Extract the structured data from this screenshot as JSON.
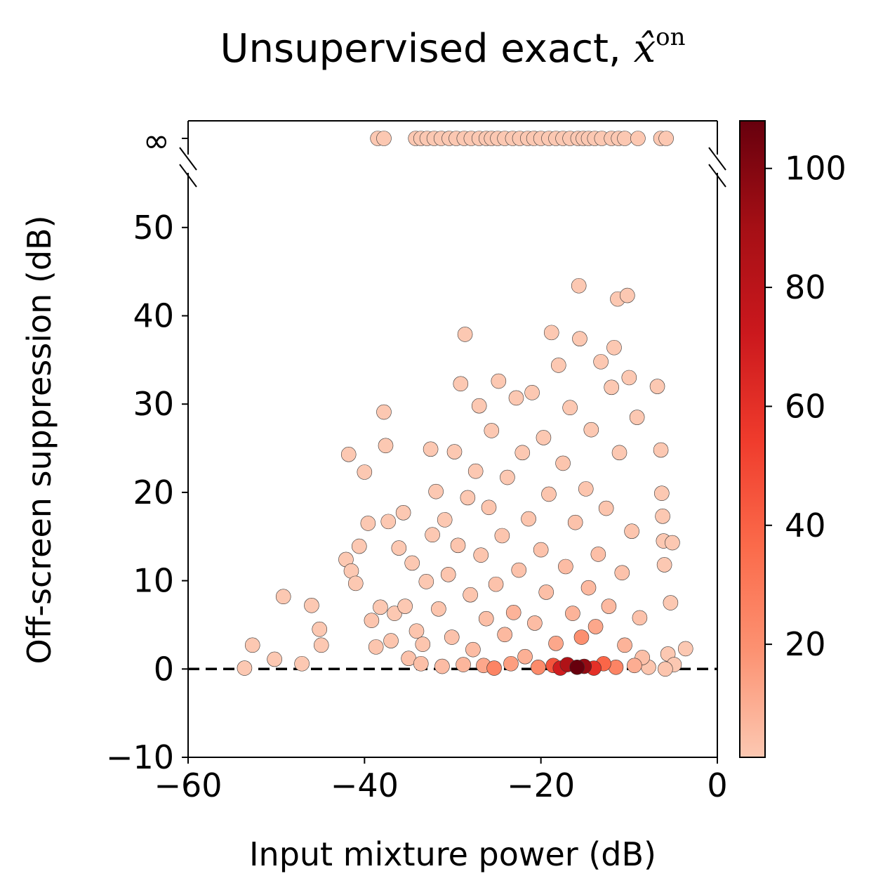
{
  "chart_data": {
    "type": "scatter",
    "title": "Unsupervised exact, ",
    "title_symbol": "x̂",
    "title_superscript": "on",
    "xlabel": "Input mixture power (dB)",
    "ylabel": "Off-screen suppression (dB)",
    "xlim": [
      -60,
      0
    ],
    "ylim": [
      -10,
      58
    ],
    "x_ticks": [
      -60,
      -40,
      -20,
      0
    ],
    "x_tick_labels": [
      "−60",
      "−40",
      "−20",
      "0"
    ],
    "y_ticks": [
      -10,
      0,
      10,
      20,
      30,
      40,
      50
    ],
    "y_tick_labels": [
      "−10",
      "0",
      "10",
      "20",
      "30",
      "40",
      "50"
    ],
    "infinity_tick_label": "∞",
    "reference_line_y": 0,
    "colorbar": {
      "min": 1,
      "max": 108,
      "ticks": [
        20,
        40,
        60,
        80,
        100
      ],
      "tick_labels": [
        "20",
        "40",
        "60",
        "80",
        "100"
      ],
      "colormap": "Reds",
      "colors": [
        "#fcc8b2",
        "#fc9272",
        "#fb6a4a",
        "#ef3b2c",
        "#cb181d",
        "#a50f15",
        "#67000d"
      ]
    },
    "infinite_points_x": [
      -38.5,
      -37.8,
      -34.2,
      -33.6,
      -32.9,
      -32.1,
      -31.3,
      -30.4,
      -29.6,
      -28.7,
      -27.9,
      -27.0,
      -26.2,
      -25.6,
      -24.9,
      -24.1,
      -23.2,
      -22.4,
      -21.5,
      -20.8,
      -20.0,
      -19.1,
      -18.3,
      -17.5,
      -16.7,
      -15.8,
      -15.2,
      -14.6,
      -13.9,
      -13.1,
      -12.0,
      -11.2,
      -10.5,
      -9.0,
      -6.4,
      -5.8
    ],
    "points": [
      {
        "x": -53.6,
        "y": 0.1,
        "c": 1
      },
      {
        "x": -52.7,
        "y": 2.7,
        "c": 1
      },
      {
        "x": -50.2,
        "y": 1.1,
        "c": 1
      },
      {
        "x": -49.2,
        "y": 8.2,
        "c": 1
      },
      {
        "x": -47.1,
        "y": 0.6,
        "c": 1
      },
      {
        "x": -46.0,
        "y": 7.2,
        "c": 1
      },
      {
        "x": -45.1,
        "y": 4.5,
        "c": 1
      },
      {
        "x": -44.9,
        "y": 2.7,
        "c": 1
      },
      {
        "x": -42.1,
        "y": 12.4,
        "c": 1
      },
      {
        "x": -41.8,
        "y": 24.3,
        "c": 1
      },
      {
        "x": -41.5,
        "y": 11.1,
        "c": 1
      },
      {
        "x": -41.0,
        "y": 9.7,
        "c": 1
      },
      {
        "x": -40.6,
        "y": 13.9,
        "c": 1
      },
      {
        "x": -40.0,
        "y": 22.3,
        "c": 1
      },
      {
        "x": -39.6,
        "y": 16.5,
        "c": 1
      },
      {
        "x": -39.2,
        "y": 5.5,
        "c": 2
      },
      {
        "x": -38.7,
        "y": 2.5,
        "c": 2
      },
      {
        "x": -38.2,
        "y": 7.0,
        "c": 1
      },
      {
        "x": -37.8,
        "y": 29.1,
        "c": 1
      },
      {
        "x": -37.6,
        "y": 25.3,
        "c": 1
      },
      {
        "x": -37.3,
        "y": 16.7,
        "c": 1
      },
      {
        "x": -37.0,
        "y": 3.2,
        "c": 2
      },
      {
        "x": -36.6,
        "y": 6.3,
        "c": 1
      },
      {
        "x": -36.1,
        "y": 13.7,
        "c": 1
      },
      {
        "x": -35.6,
        "y": 17.7,
        "c": 1
      },
      {
        "x": -35.4,
        "y": 7.1,
        "c": 1
      },
      {
        "x": -35.0,
        "y": 1.2,
        "c": 3
      },
      {
        "x": -34.6,
        "y": 12.0,
        "c": 1
      },
      {
        "x": -34.1,
        "y": 4.3,
        "c": 2
      },
      {
        "x": -33.6,
        "y": 0.6,
        "c": 4
      },
      {
        "x": -33.4,
        "y": 2.8,
        "c": 2
      },
      {
        "x": -33.0,
        "y": 9.9,
        "c": 1
      },
      {
        "x": -32.5,
        "y": 24.9,
        "c": 1
      },
      {
        "x": -32.3,
        "y": 15.2,
        "c": 1
      },
      {
        "x": -31.9,
        "y": 20.1,
        "c": 1
      },
      {
        "x": -31.6,
        "y": 6.8,
        "c": 2
      },
      {
        "x": -31.2,
        "y": 0.3,
        "c": 5
      },
      {
        "x": -30.9,
        "y": 16.9,
        "c": 1
      },
      {
        "x": -30.5,
        "y": 10.7,
        "c": 2
      },
      {
        "x": -30.1,
        "y": 3.6,
        "c": 3
      },
      {
        "x": -29.8,
        "y": 24.6,
        "c": 1
      },
      {
        "x": -29.4,
        "y": 14.0,
        "c": 2
      },
      {
        "x": -29.1,
        "y": 32.3,
        "c": 1
      },
      {
        "x": -28.8,
        "y": 0.5,
        "c": 7
      },
      {
        "x": -28.6,
        "y": 37.9,
        "c": 1
      },
      {
        "x": -28.3,
        "y": 19.4,
        "c": 1
      },
      {
        "x": -28.0,
        "y": 8.4,
        "c": 2
      },
      {
        "x": -27.7,
        "y": 2.2,
        "c": 5
      },
      {
        "x": -27.4,
        "y": 22.4,
        "c": 1
      },
      {
        "x": -27.0,
        "y": 29.8,
        "c": 1
      },
      {
        "x": -26.8,
        "y": 12.9,
        "c": 2
      },
      {
        "x": -26.5,
        "y": 0.4,
        "c": 12
      },
      {
        "x": -26.2,
        "y": 5.7,
        "c": 4
      },
      {
        "x": -25.9,
        "y": 18.3,
        "c": 2
      },
      {
        "x": -25.6,
        "y": 27.0,
        "c": 1
      },
      {
        "x": -25.3,
        "y": 0.1,
        "c": 25
      },
      {
        "x": -25.1,
        "y": 9.6,
        "c": 3
      },
      {
        "x": -24.8,
        "y": 32.6,
        "c": 1
      },
      {
        "x": -24.4,
        "y": 15.1,
        "c": 2
      },
      {
        "x": -24.1,
        "y": 3.9,
        "c": 6
      },
      {
        "x": -23.8,
        "y": 21.7,
        "c": 1
      },
      {
        "x": -23.4,
        "y": 0.6,
        "c": 15
      },
      {
        "x": -23.1,
        "y": 6.4,
        "c": 8
      },
      {
        "x": -22.8,
        "y": 30.7,
        "c": 1
      },
      {
        "x": -22.5,
        "y": 11.2,
        "c": 3
      },
      {
        "x": -22.1,
        "y": 24.5,
        "c": 1
      },
      {
        "x": -21.8,
        "y": 1.4,
        "c": 9
      },
      {
        "x": -21.4,
        "y": 17.0,
        "c": 2
      },
      {
        "x": -21.0,
        "y": 31.3,
        "c": 1
      },
      {
        "x": -20.7,
        "y": 5.2,
        "c": 5
      },
      {
        "x": -20.3,
        "y": 0.2,
        "c": 22
      },
      {
        "x": -20.0,
        "y": 13.5,
        "c": 3
      },
      {
        "x": -19.7,
        "y": 26.2,
        "c": 1
      },
      {
        "x": -19.4,
        "y": 8.7,
        "c": 4
      },
      {
        "x": -19.1,
        "y": 19.8,
        "c": 2
      },
      {
        "x": -18.8,
        "y": 38.1,
        "c": 1
      },
      {
        "x": -18.6,
        "y": 0.4,
        "c": 45
      },
      {
        "x": -18.3,
        "y": 2.9,
        "c": 12
      },
      {
        "x": -18.0,
        "y": 34.4,
        "c": 1
      },
      {
        "x": -17.8,
        "y": 0.1,
        "c": 70
      },
      {
        "x": -17.5,
        "y": 23.3,
        "c": 2
      },
      {
        "x": -17.2,
        "y": 11.6,
        "c": 5
      },
      {
        "x": -17.0,
        "y": 0.5,
        "c": 85
      },
      {
        "x": -16.7,
        "y": 29.6,
        "c": 1
      },
      {
        "x": -16.4,
        "y": 6.3,
        "c": 8
      },
      {
        "x": -16.1,
        "y": 16.6,
        "c": 3
      },
      {
        "x": -15.9,
        "y": 0.2,
        "c": 108
      },
      {
        "x": -15.7,
        "y": 43.4,
        "c": 1
      },
      {
        "x": -15.6,
        "y": 37.4,
        "c": 1
      },
      {
        "x": -15.4,
        "y": 3.6,
        "c": 20
      },
      {
        "x": -15.1,
        "y": 0.3,
        "c": 95
      },
      {
        "x": -14.9,
        "y": 20.4,
        "c": 2
      },
      {
        "x": -14.6,
        "y": 9.2,
        "c": 6
      },
      {
        "x": -14.3,
        "y": 27.1,
        "c": 1
      },
      {
        "x": -14.0,
        "y": 0.1,
        "c": 60
      },
      {
        "x": -13.8,
        "y": 4.8,
        "c": 12
      },
      {
        "x": -13.5,
        "y": 13.0,
        "c": 4
      },
      {
        "x": -13.2,
        "y": 34.8,
        "c": 1
      },
      {
        "x": -12.9,
        "y": 0.6,
        "c": 38
      },
      {
        "x": -12.6,
        "y": 18.2,
        "c": 2
      },
      {
        "x": -12.3,
        "y": 7.1,
        "c": 6
      },
      {
        "x": -12.0,
        "y": 31.9,
        "c": 1
      },
      {
        "x": -11.7,
        "y": 36.4,
        "c": 1
      },
      {
        "x": -11.5,
        "y": 0.2,
        "c": 25
      },
      {
        "x": -11.3,
        "y": 41.9,
        "c": 1
      },
      {
        "x": -11.1,
        "y": 24.5,
        "c": 1
      },
      {
        "x": -10.8,
        "y": 10.9,
        "c": 3
      },
      {
        "x": -10.5,
        "y": 2.7,
        "c": 8
      },
      {
        "x": -10.2,
        "y": 42.3,
        "c": 1
      },
      {
        "x": -10.0,
        "y": 33.0,
        "c": 1
      },
      {
        "x": -9.7,
        "y": 15.6,
        "c": 2
      },
      {
        "x": -9.4,
        "y": 0.4,
        "c": 10
      },
      {
        "x": -9.1,
        "y": 28.5,
        "c": 1
      },
      {
        "x": -8.8,
        "y": 5.8,
        "c": 3
      },
      {
        "x": -8.5,
        "y": 1.3,
        "c": 4
      },
      {
        "x": -7.8,
        "y": 0.2,
        "c": 2
      },
      {
        "x": -6.8,
        "y": 32.0,
        "c": 1
      },
      {
        "x": -6.4,
        "y": 24.8,
        "c": 1
      },
      {
        "x": -6.3,
        "y": 19.9,
        "c": 1
      },
      {
        "x": -6.2,
        "y": 17.3,
        "c": 1
      },
      {
        "x": -6.1,
        "y": 14.5,
        "c": 1
      },
      {
        "x": -6.0,
        "y": 11.8,
        "c": 1
      },
      {
        "x": -5.9,
        "y": 0.0,
        "c": 2
      },
      {
        "x": -5.6,
        "y": 1.7,
        "c": 1
      },
      {
        "x": -5.3,
        "y": 7.5,
        "c": 1
      },
      {
        "x": -5.1,
        "y": 14.3,
        "c": 1
      },
      {
        "x": -4.9,
        "y": 0.5,
        "c": 1
      },
      {
        "x": -3.6,
        "y": 2.3,
        "c": 1
      }
    ]
  }
}
